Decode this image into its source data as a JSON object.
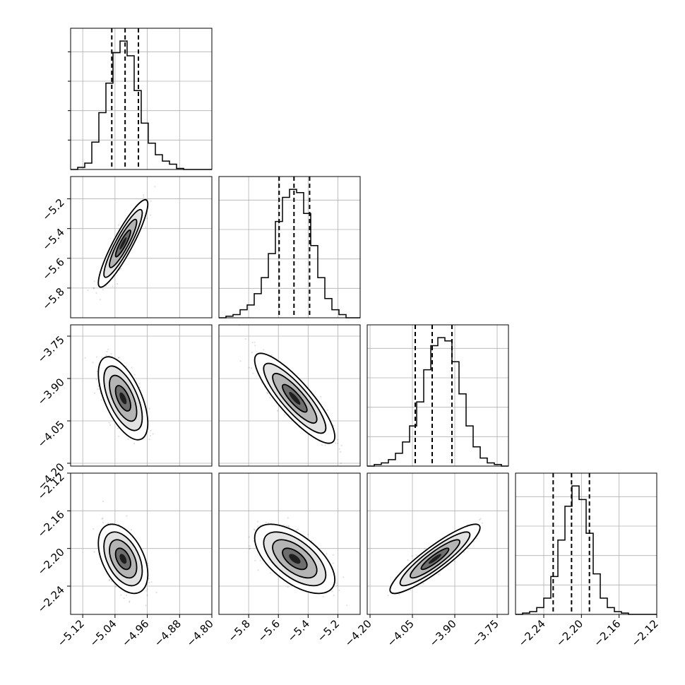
{
  "chart_data": {
    "type": "corner",
    "grid": true,
    "parameters": [
      {
        "range": [
          -5.15,
          -4.8
        ],
        "ticks": [
          "−5.12",
          "−5.04",
          "−4.96",
          "−4.88",
          "−4.80"
        ],
        "tick_values": [
          -5.12,
          -5.04,
          -4.96,
          -4.88,
          -4.8
        ],
        "quantiles": [
          -5.048,
          -5.015,
          -4.982
        ],
        "hist": {
          "edges": [
            -5.15,
            -5.1325,
            -5.115,
            -5.0975,
            -5.08,
            -5.0625,
            -5.045,
            -5.0275,
            -5.01,
            -4.9925,
            -4.975,
            -4.9575,
            -4.94,
            -4.9225,
            -4.905,
            -4.8875,
            -4.87,
            -4.8525,
            -4.835,
            -4.8175,
            -4.8
          ],
          "counts": [
            0,
            2,
            6,
            26,
            54,
            82,
            111,
            122,
            108,
            75,
            44,
            25,
            14,
            8,
            5,
            1,
            0,
            0,
            0,
            0
          ]
        }
      },
      {
        "range": [
          -6.0,
          -5.05
        ],
        "ticks": [
          "−5.8",
          "−5.6",
          "−5.4",
          "−5.2"
        ],
        "tick_values": [
          -5.8,
          -5.6,
          -5.4,
          -5.2
        ],
        "quantiles": [
          -5.595,
          -5.495,
          -5.39
        ],
        "hist": {
          "edges": [
            -6.0,
            -5.9525,
            -5.905,
            -5.8575,
            -5.81,
            -5.7625,
            -5.715,
            -5.6675,
            -5.62,
            -5.5725,
            -5.525,
            -5.4775,
            -5.43,
            -5.3825,
            -5.335,
            -5.2875,
            -5.24,
            -5.1925,
            -5.145,
            -5.0975,
            -5.05
          ],
          "counts": [
            0,
            1,
            2,
            5,
            8,
            15,
            25,
            40,
            60,
            75,
            80,
            78,
            65,
            45,
            25,
            12,
            5,
            2,
            0,
            0
          ]
        }
      },
      {
        "range": [
          -4.21,
          -3.71
        ],
        "ticks": [
          "−4.20",
          "−4.05",
          "−3.90",
          "−3.75"
        ],
        "tick_values": [
          -4.2,
          -4.05,
          -3.9,
          -3.75
        ],
        "quantiles": [
          -4.04,
          -3.98,
          -3.91
        ],
        "hist": {
          "edges": [
            -4.21,
            -4.185,
            -4.16,
            -4.135,
            -4.11,
            -4.085,
            -4.06,
            -4.035,
            -4.01,
            -3.985,
            -3.96,
            -3.935,
            -3.91,
            -3.885,
            -3.86,
            -3.835,
            -3.81,
            -3.785,
            -3.76,
            -3.735,
            -3.71
          ],
          "counts": [
            0,
            1,
            2,
            4,
            8,
            15,
            25,
            40,
            60,
            75,
            80,
            78,
            65,
            45,
            25,
            12,
            5,
            2,
            1,
            0
          ]
        }
      },
      {
        "range": [
          -2.27,
          -2.12
        ],
        "ticks": [
          "−2.24",
          "−2.20",
          "−2.16",
          "−2.12"
        ],
        "tick_values": [
          -2.24,
          -2.2,
          -2.16,
          -2.12
        ],
        "quantiles": [
          -2.23,
          -2.2105,
          -2.1915
        ],
        "hist": {
          "edges": [
            -2.27,
            -2.2625,
            -2.255,
            -2.2475,
            -2.24,
            -2.2325,
            -2.225,
            -2.2175,
            -2.21,
            -2.2025,
            -2.195,
            -2.1875,
            -2.18,
            -2.1725,
            -2.165,
            -2.1575,
            -2.15,
            -2.1425,
            -2.135,
            -2.1275,
            -2.12
          ],
          "counts": [
            0,
            1,
            2,
            5,
            12,
            28,
            55,
            80,
            95,
            85,
            60,
            30,
            12,
            5,
            2,
            1,
            0,
            0,
            0,
            0
          ]
        }
      }
    ],
    "pairs": [
      {
        "x": 0,
        "y": 1,
        "center": [
          -5.02,
          -5.5
        ],
        "sd": [
          0.025,
          0.12
        ],
        "rho": 0.9
      },
      {
        "x": 0,
        "y": 2,
        "center": [
          -5.02,
          -3.97
        ],
        "sd": [
          0.025,
          0.06
        ],
        "rho": -0.6
      },
      {
        "x": 1,
        "y": 2,
        "center": [
          -5.49,
          -3.97
        ],
        "sd": [
          0.11,
          0.065
        ],
        "rho": -0.85
      },
      {
        "x": 0,
        "y": 3,
        "center": [
          -5.02,
          -2.211
        ],
        "sd": [
          0.025,
          0.015
        ],
        "rho": -0.45
      },
      {
        "x": 1,
        "y": 3,
        "center": [
          -5.49,
          -2.211
        ],
        "sd": [
          0.11,
          0.015
        ],
        "rho": -0.6
      },
      {
        "x": 2,
        "y": 3,
        "center": [
          -3.97,
          -2.211
        ],
        "sd": [
          0.065,
          0.015
        ],
        "rho": 0.9
      }
    ]
  }
}
